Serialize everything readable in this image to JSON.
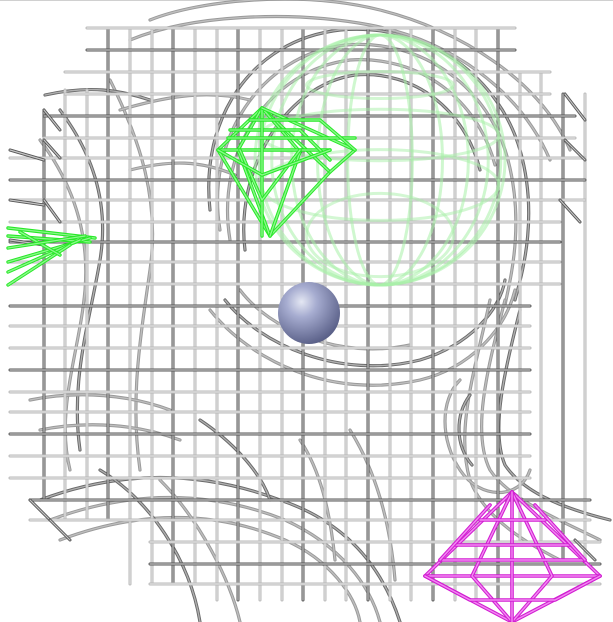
{
  "scene": {
    "background_color": "#ffffff",
    "grid": {
      "color_dark": "#555555",
      "color_light": "#b8b8b8",
      "highlight": "#f2f2f2"
    },
    "head_wireframe": {
      "color_dark": "#6a6a6a",
      "color_light": "#cfcfcf"
    },
    "objects": [
      {
        "name": "green-diamond-wireframe",
        "color": "#27e827"
      },
      {
        "name": "green-sphere-wireframe-faint",
        "color": "#a8f0a8"
      },
      {
        "name": "green-ray-wireframe",
        "color": "#27e827"
      },
      {
        "name": "blue-sphere",
        "color": "#8a92b8"
      },
      {
        "name": "magenta-octahedron-wireframe",
        "color": "#d21ed2"
      }
    ]
  }
}
